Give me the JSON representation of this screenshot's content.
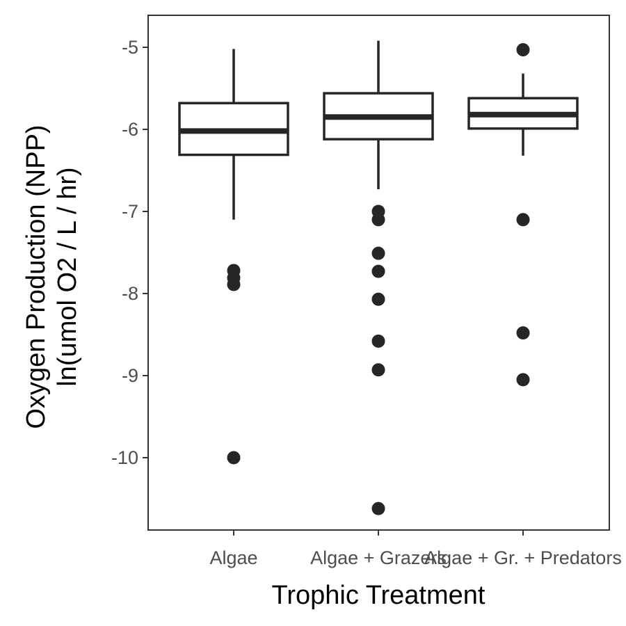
{
  "chart_data": {
    "type": "boxplot",
    "xlabel": "Trophic Treatment",
    "ylabel_line1": "Oxygen Production (NPP)",
    "ylabel_line2": "ln(umol O2 / L / hr)",
    "categories": [
      "Algae",
      "Algae + Grazers",
      "Algae + Gr. + Predators"
    ],
    "y_ticks": [
      -10,
      -9,
      -8,
      -7,
      -6,
      -5
    ],
    "y_tick_labels": [
      "-10",
      "-9",
      "-8",
      "-7",
      "-6",
      "-5"
    ],
    "ylim": [
      -10.9,
      -4.62
    ],
    "grid": false,
    "boxes": [
      {
        "category": "Algae",
        "whisker_low": -7.1,
        "q1": -6.31,
        "median": -6.02,
        "q3": -5.68,
        "whisker_high": -5.02,
        "outliers": [
          -7.72,
          -7.81,
          -7.89,
          -10.0
        ]
      },
      {
        "category": "Algae + Grazers",
        "whisker_low": -6.73,
        "q1": -6.12,
        "median": -5.85,
        "q3": -5.56,
        "whisker_high": -4.92,
        "outliers": [
          -7.0,
          -7.1,
          -7.51,
          -7.73,
          -8.07,
          -8.58,
          -8.93,
          -10.62
        ]
      },
      {
        "category": "Algae + Gr. + Predators",
        "whisker_low": -6.32,
        "q1": -5.99,
        "median": -5.82,
        "q3": -5.62,
        "whisker_high": -5.32,
        "outliers": [
          -5.03,
          -7.1,
          -8.48,
          -9.05
        ]
      }
    ],
    "colors": {
      "box_line": "#262626",
      "box_fill": "#ffffff",
      "outlier": "#262626",
      "panel_border": "#333333",
      "tick_text": "#4d4d4d",
      "title_text": "#000000"
    }
  }
}
